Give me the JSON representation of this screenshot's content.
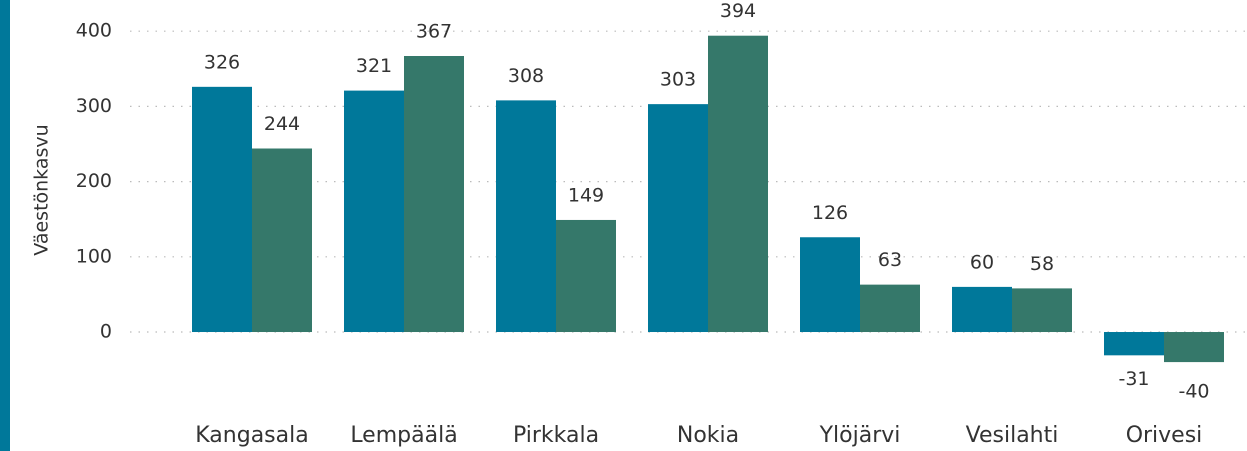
{
  "chart_data": {
    "type": "bar",
    "y_label": "Väestönkasvu",
    "categories": [
      "Kangasala",
      "Lempäälä",
      "Pirkkala",
      "Nokia",
      "Ylöjärvi",
      "Vesilahti",
      "Orivesi"
    ],
    "series": [
      {
        "color": "#00789a",
        "values": [
          326,
          321,
          308,
          303,
          126,
          60,
          -31
        ]
      },
      {
        "color": "#35786a",
        "values": [
          244,
          367,
          149,
          394,
          63,
          58,
          -40
        ]
      }
    ],
    "ylim": [
      -90,
      440
    ],
    "yticks": [
      0,
      100,
      200,
      300,
      400
    ],
    "grid": true
  }
}
